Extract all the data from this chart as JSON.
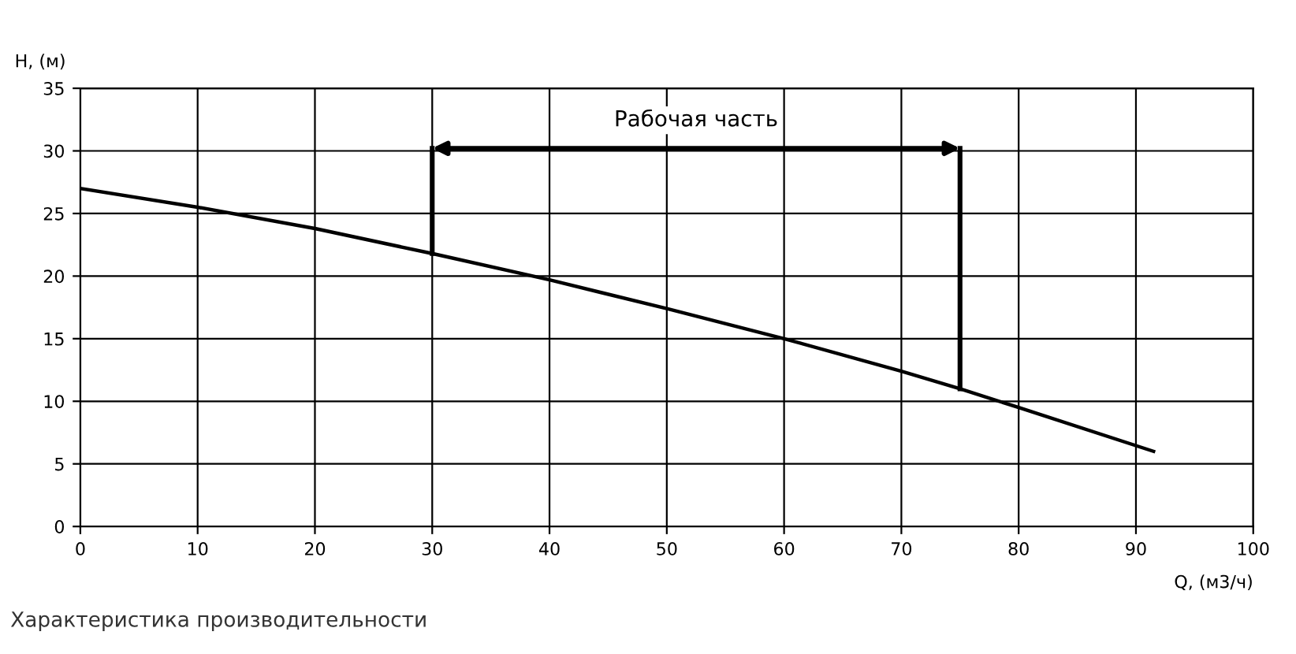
{
  "chart_data": {
    "type": "line",
    "xlabel": "Q, (м3/ч)",
    "ylabel": "H, (м)",
    "series": [
      {
        "color": "#000000",
        "x": [
          0,
          10,
          20,
          30,
          40,
          50,
          60,
          70,
          75,
          80,
          91.5
        ],
        "values": [
          27,
          25.5,
          23.8,
          21.8,
          19.7,
          17.4,
          15,
          12.4,
          11,
          9.5,
          6
        ]
      },
      {
        "color": "#000000",
        "x": [
          30,
          30
        ],
        "values": [
          21.8,
          30.2
        ]
      },
      {
        "color": "#000000",
        "x": [
          75,
          75
        ],
        "values": [
          11,
          30.2
        ]
      }
    ],
    "annotations": [
      "Рабочая часть",
      "Характеристика производительности"
    ],
    "xlim": [
      0,
      100
    ],
    "ylim": [
      0,
      35
    ],
    "xticks": [
      0,
      10,
      20,
      30,
      40,
      50,
      60,
      70,
      80,
      90,
      100
    ],
    "yticks": [
      0,
      5,
      10,
      15,
      20,
      25,
      30,
      35
    ],
    "grid": true,
    "marker": "none",
    "line_style": "solid"
  }
}
